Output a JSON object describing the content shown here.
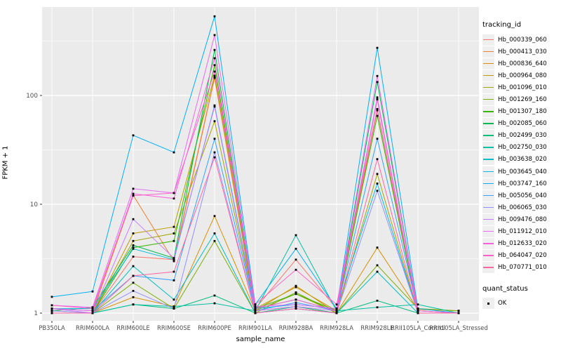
{
  "chart": {
    "x_axis_title": "sample_name",
    "y_axis_title": "FPKM + 1",
    "legend_tracking_title": "tracking_id",
    "legend_quant_title": "quant_status",
    "quant_ok_label": "OK"
  },
  "chart_data": {
    "type": "line",
    "title": "",
    "xlabel": "sample_name",
    "ylabel": "FPKM + 1",
    "y_scale": "log10",
    "y_tick_values": [
      1,
      10,
      100
    ],
    "y_tick_labels": [
      "1",
      "10",
      "100"
    ],
    "grid": true,
    "legend_position": "right",
    "legend_title": "tracking_id",
    "quant_status_legend": {
      "title": "quant_status",
      "items": [
        "OK"
      ]
    },
    "point_color": "#000000",
    "panel_color": "#ebebeb",
    "x_categories": [
      "PB350LA",
      "RRIM600LA",
      "RRIM600LE",
      "RRIM600SE",
      "RRIM600PE",
      "RRIM901LA",
      "RRIM928BA",
      "RRIM928LA",
      "RRIM928LE",
      "RRII105LA_Control",
      "RRII105LA_Stressed"
    ],
    "series": [
      {
        "name": "Hb_000339_060",
        "color": "#F8766D",
        "values": [
          1.0,
          1.0,
          3.3,
          3.1,
          148,
          1.1,
          3.1,
          1.1,
          75,
          1.0,
          1.0
        ]
      },
      {
        "name": "Hb_000413_030",
        "color": "#EA8331",
        "values": [
          1.05,
          1.0,
          12.1,
          3.0,
          145,
          1.05,
          1.15,
          1.0,
          73,
          1.0,
          1.0
        ]
      },
      {
        "name": "Hb_000836_640",
        "color": "#D89000",
        "values": [
          1.0,
          1.0,
          1.4,
          1.15,
          7.8,
          1.05,
          1.78,
          1.0,
          4.0,
          1.08,
          1.05
        ]
      },
      {
        "name": "Hb_000964_080",
        "color": "#C09B00",
        "values": [
          1.0,
          1.0,
          5.4,
          6.2,
          152,
          1.1,
          1.73,
          1.05,
          92,
          1.0,
          1.0
        ]
      },
      {
        "name": "Hb_001096_010",
        "color": "#A3A500",
        "values": [
          1.0,
          1.0,
          4.6,
          5.4,
          58,
          1.05,
          1.5,
          1.0,
          19,
          1.0,
          1.0
        ]
      },
      {
        "name": "Hb_001269_160",
        "color": "#7CAE00",
        "values": [
          1.0,
          1.0,
          1.9,
          1.1,
          4.6,
          1.0,
          1.55,
          1.0,
          2.75,
          1.1,
          1.05
        ]
      },
      {
        "name": "Hb_001307_180",
        "color": "#39B600",
        "values": [
          1.0,
          1.0,
          4.0,
          4.6,
          190,
          1.1,
          1.5,
          1.05,
          65,
          1.0,
          1.0
        ]
      },
      {
        "name": "Hb_002085_060",
        "color": "#00BB4E",
        "values": [
          1.05,
          1.13,
          4.2,
          3.2,
          262,
          1.1,
          1.33,
          1.05,
          133,
          1.05,
          1.0
        ]
      },
      {
        "name": "Hb_002499_030",
        "color": "#00BF7D",
        "values": [
          1.0,
          1.0,
          1.2,
          1.1,
          1.45,
          1.0,
          1.15,
          1.0,
          1.3,
          1.0,
          1.0
        ]
      },
      {
        "name": "Hb_002750_030",
        "color": "#00C1A3",
        "values": [
          1.0,
          1.0,
          1.2,
          1.15,
          1.23,
          1.05,
          5.2,
          1.05,
          1.13,
          1.2,
          1.0
        ]
      },
      {
        "name": "Hb_003638_020",
        "color": "#00BFC4",
        "values": [
          1.0,
          1.0,
          2.7,
          1.33,
          5.4,
          1.0,
          1.1,
          1.0,
          2.4,
          1.0,
          1.0
        ]
      },
      {
        "name": "Hb_003645_040",
        "color": "#00BAE0",
        "values": [
          1.1,
          1.1,
          3.9,
          3.1,
          81,
          1.1,
          1.2,
          1.1,
          15.5,
          1.0,
          1.0
        ]
      },
      {
        "name": "Hb_003747_160",
        "color": "#00B0F6",
        "values": [
          1.41,
          1.58,
          43,
          30,
          534,
          1.2,
          3.9,
          1.1,
          274,
          1.1,
          1.0
        ]
      },
      {
        "name": "Hb_005056_040",
        "color": "#35A2FF",
        "values": [
          1.1,
          1.05,
          2.2,
          2.0,
          40,
          1.05,
          1.25,
          1.05,
          40,
          1.05,
          1.0
        ]
      },
      {
        "name": "Hb_006065_030",
        "color": "#9590FF",
        "values": [
          1.05,
          1.0,
          1.6,
          1.1,
          30,
          1.0,
          1.1,
          1.0,
          13.3,
          1.0,
          1.0
        ]
      },
      {
        "name": "Hb_009476_080",
        "color": "#C77CFF",
        "values": [
          1.1,
          1.0,
          7.3,
          3.2,
          79,
          1.05,
          1.15,
          1.05,
          96,
          1.0,
          1.0
        ]
      },
      {
        "name": "Hb_011912_010",
        "color": "#E76BF3",
        "values": [
          1.18,
          1.13,
          13.9,
          12.7,
          359,
          1.15,
          1.2,
          1.1,
          151,
          1.05,
          1.0
        ]
      },
      {
        "name": "Hb_012633_020",
        "color": "#FA62DB",
        "values": [
          1.1,
          1.05,
          12.5,
          11.3,
          220,
          1.1,
          1.33,
          1.05,
          92,
          1.0,
          1.0
        ]
      },
      {
        "name": "Hb_064047_020",
        "color": "#FF61C9",
        "values": [
          1.18,
          1.1,
          12.0,
          12.7,
          166,
          1.2,
          2.5,
          1.2,
          75,
          1.05,
          1.0
        ]
      },
      {
        "name": "Hb_070771_010",
        "color": "#FF67A4",
        "values": [
          1.0,
          1.0,
          2.2,
          2.4,
          27,
          1.0,
          1.1,
          1.0,
          26,
          1.0,
          1.0
        ]
      }
    ]
  }
}
